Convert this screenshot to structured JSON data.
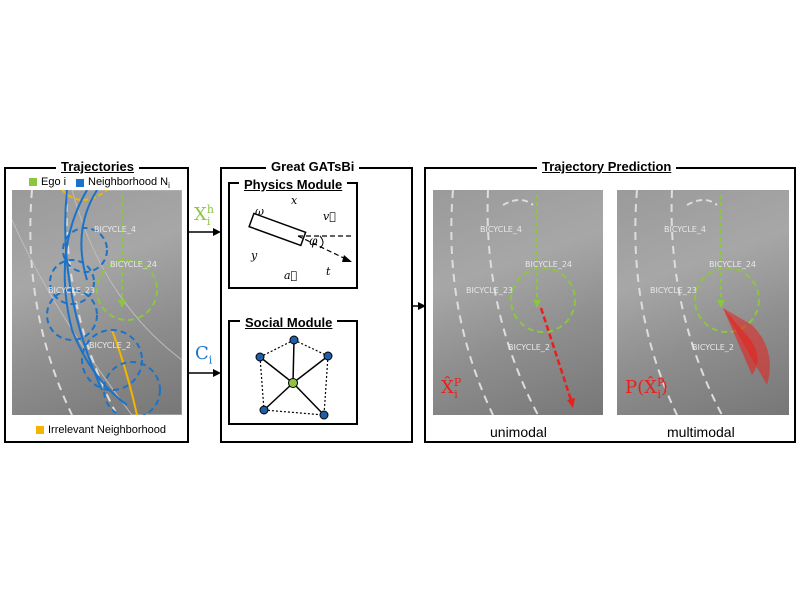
{
  "panels": {
    "trajectories": {
      "title": "Trajectories",
      "legend": {
        "ego": "Ego i",
        "neighborhood": "Neighborhood N",
        "neighborhood_sub": "i",
        "irrelevant": "Irrelevant Neighborhood"
      },
      "labels": [
        "BICYCLE_4",
        "BICYCLE_24",
        "BICYCLE_23",
        "BICYCLE_2"
      ]
    },
    "gatsbi": {
      "title": "Great GATsBi",
      "physics": {
        "title": "Physics Module",
        "x": "x",
        "omega": "ω",
        "v": "v⃗",
        "phi": "φ",
        "y": "y",
        "a": "a⃗",
        "t": "t"
      },
      "social": {
        "title": "Social Module"
      }
    },
    "prediction": {
      "title": "Trajectory Prediction",
      "unimodal_caption": "unimodal",
      "multimodal_caption": "multimodal",
      "unimodal_labels": [
        "BICYCLE_4",
        "BICYCLE_24",
        "BICYCLE_23",
        "BICYCLE_2"
      ],
      "multimodal_labels": [
        "BICYCLE_4",
        "BICYCLE_24",
        "BICYCLE_23",
        "BICYCLE_2"
      ],
      "unimodal_symbol": {
        "base": "X̂",
        "sub": "i",
        "sup": "P"
      },
      "multimodal_symbol": {
        "prefix": "P(",
        "base": "X̂",
        "sub": "i",
        "sup": "P",
        "suffix": ")"
      }
    }
  },
  "inputs": {
    "xh": {
      "base": "X",
      "sub": "i",
      "sup": "h"
    },
    "c": {
      "base": "C",
      "sub": "i"
    }
  },
  "colors": {
    "ego": "#8cc63f",
    "neighbor": "#1a73c8",
    "irrelevant": "#f5b400",
    "prediction": "#e8201c",
    "node": "#1f5fa8"
  }
}
